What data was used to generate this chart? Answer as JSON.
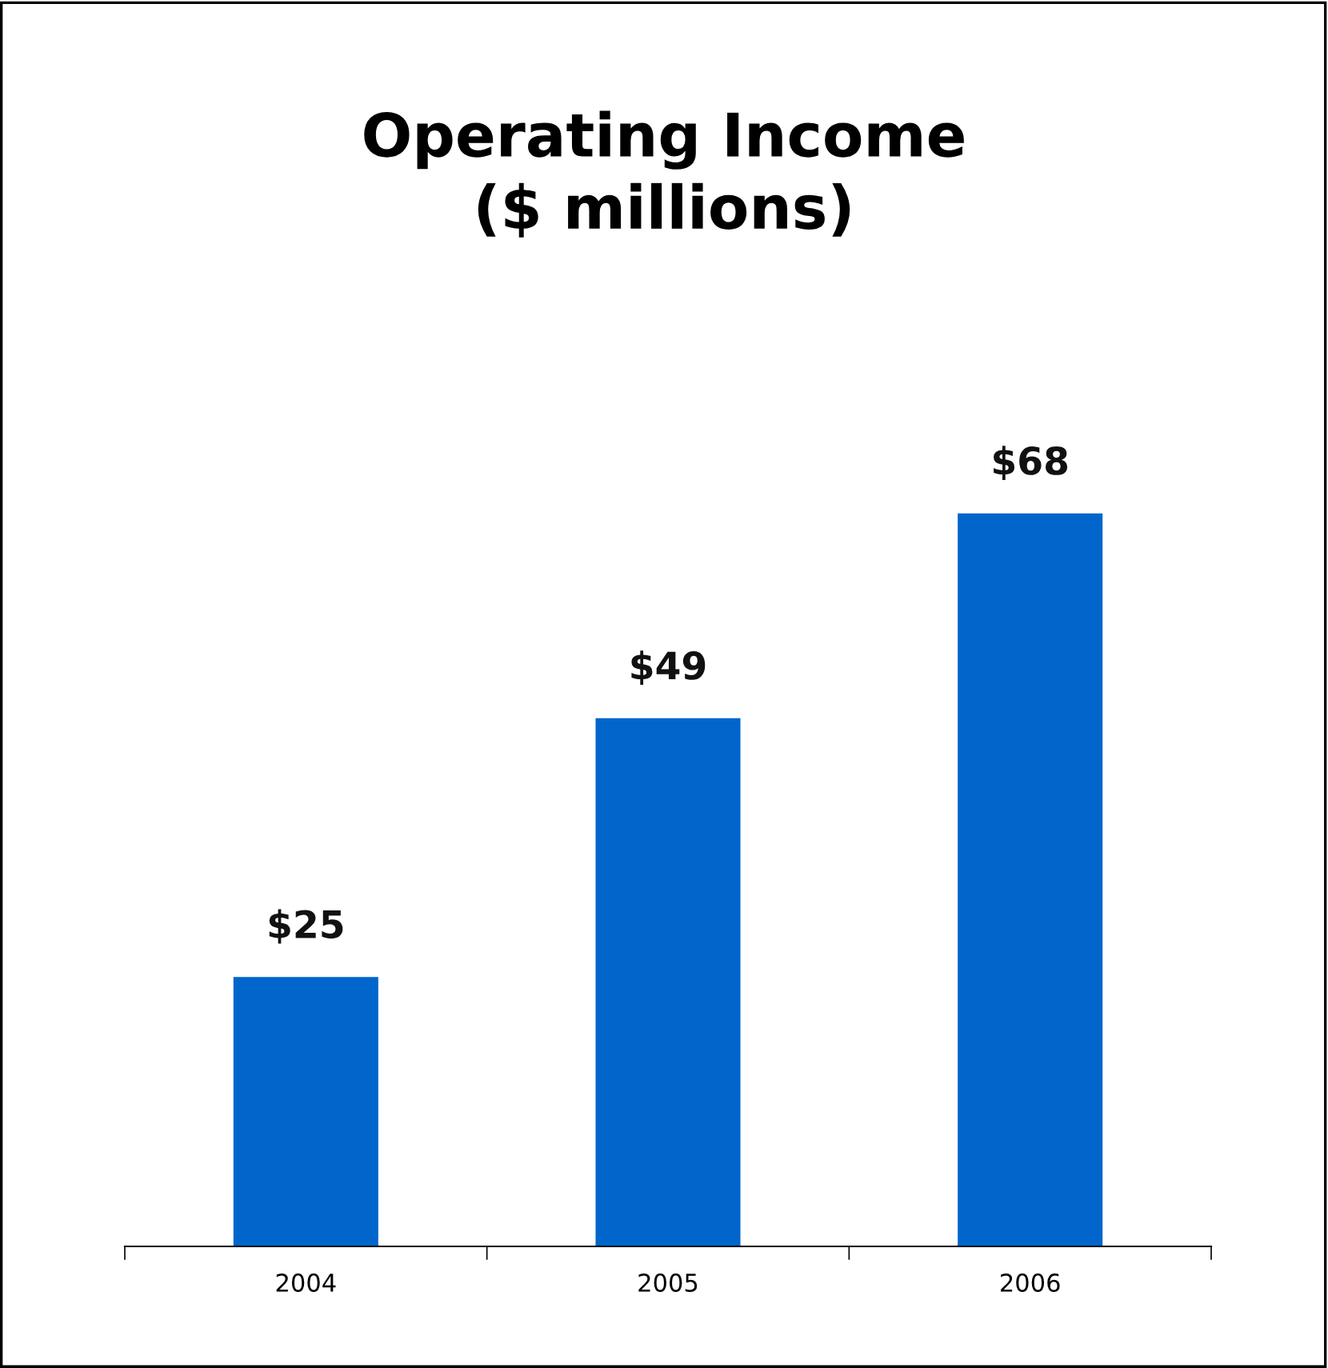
{
  "chart_data": {
    "type": "bar",
    "title": "Operating Income\n($ millions)",
    "categories": [
      "2004",
      "2005",
      "2006"
    ],
    "values": [
      25,
      49,
      68
    ],
    "value_labels": [
      "$25",
      "$49",
      "$68"
    ],
    "color": "#0066cc",
    "grid": false
  }
}
